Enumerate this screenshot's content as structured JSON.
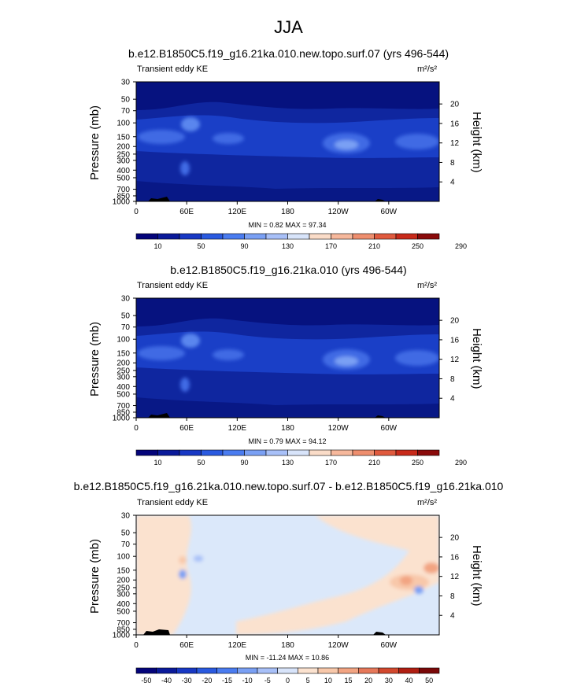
{
  "figure": {
    "title": "JJA"
  },
  "colors": {
    "panel1_bg": "#0a1a8c",
    "diff_bg": "#dbe8fa",
    "seq_colorbar": [
      "#04047a",
      "#0a1a9a",
      "#1838c4",
      "#2a5ae0",
      "#4a7cf0",
      "#7aa0f4",
      "#a8c0f8",
      "#d8e4fa",
      "#fadcc8",
      "#f6b89c",
      "#ee8e6e",
      "#e05a3e",
      "#c82a1a",
      "#8a0a0a"
    ],
    "div_colorbar": [
      "#04047a",
      "#0a1a9a",
      "#1838c4",
      "#2a5ae0",
      "#4a7cf0",
      "#7aa0f4",
      "#a8c0f8",
      "#d8e4fa",
      "#fbe2cf",
      "#f8c8aa",
      "#f2a482",
      "#e6785a",
      "#d2482e",
      "#b01e12",
      "#7a0808"
    ]
  },
  "chart_data": [
    {
      "type": "heatmap",
      "title": "b.e12.B1850C5.f19_g16.21ka.010.new.topo.surf.07 (yrs 496-544)",
      "left_label": "Transient eddy KE",
      "units_label": "m²/s²",
      "ylabel": "Pressure (mb)",
      "y2label": "Height (km)",
      "xticks": [
        "0",
        "60E",
        "120E",
        "180",
        "120W",
        "60W"
      ],
      "yticks": [
        "30",
        "50",
        "70",
        "100",
        "150",
        "200",
        "250",
        "300",
        "400",
        "500",
        "700",
        "850",
        "1000"
      ],
      "y2ticks": [
        "20",
        "16",
        "12",
        "8",
        "4"
      ],
      "stats": "MIN =   0.82  MAX =  97.34",
      "colorbar_ticks": [
        "10",
        "50",
        "90",
        "130",
        "170",
        "210",
        "250",
        "290"
      ]
    },
    {
      "type": "heatmap",
      "title": "b.e12.B1850C5.f19_g16.21ka.010 (yrs 496-544)",
      "left_label": "Transient eddy KE",
      "units_label": "m²/s²",
      "ylabel": "Pressure (mb)",
      "y2label": "Height (km)",
      "xticks": [
        "0",
        "60E",
        "120E",
        "180",
        "120W",
        "60W"
      ],
      "yticks": [
        "30",
        "50",
        "70",
        "100",
        "150",
        "200",
        "250",
        "300",
        "400",
        "500",
        "700",
        "850",
        "1000"
      ],
      "y2ticks": [
        "20",
        "16",
        "12",
        "8",
        "4"
      ],
      "stats": "MIN =   0.79  MAX =  94.12",
      "colorbar_ticks": [
        "10",
        "50",
        "90",
        "130",
        "170",
        "210",
        "250",
        "290"
      ]
    },
    {
      "type": "heatmap",
      "title": "b.e12.B1850C5.f19_g16.21ka.010.new.topo.surf.07 - b.e12.B1850C5.f19_g16.21ka.010",
      "left_label": "Transient eddy KE",
      "units_label": "m²/s²",
      "ylabel": "Pressure (mb)",
      "y2label": "Height (km)",
      "xticks": [
        "0",
        "60E",
        "120E",
        "180",
        "120W",
        "60W"
      ],
      "yticks": [
        "30",
        "50",
        "70",
        "100",
        "150",
        "200",
        "250",
        "300",
        "400",
        "500",
        "700",
        "850",
        "1000"
      ],
      "y2ticks": [
        "20",
        "16",
        "12",
        "8",
        "4"
      ],
      "stats": "MIN = -11.24  MAX =  10.86",
      "colorbar_ticks": [
        "-50",
        "-40",
        "-30",
        "-20",
        "-15",
        "-10",
        "-5",
        "0",
        "5",
        "10",
        "15",
        "20",
        "30",
        "40",
        "50"
      ]
    }
  ]
}
